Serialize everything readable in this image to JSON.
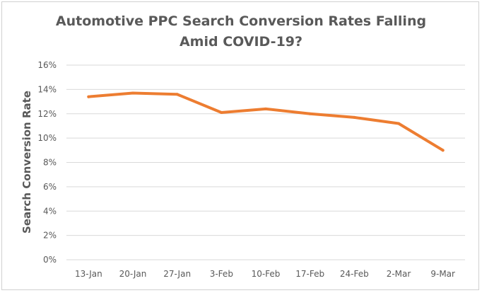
{
  "chart_data": {
    "type": "line",
    "title_lines": [
      "Automotive PPC Search Conversion Rates Falling",
      "Amid COVID-19?"
    ],
    "xlabel": "",
    "ylabel": "Search Conversion Rate",
    "categories": [
      "13-Jan",
      "20-Jan",
      "27-Jan",
      "3-Feb",
      "10-Feb",
      "17-Feb",
      "24-Feb",
      "2-Mar",
      "9-Mar"
    ],
    "series": [
      {
        "values": [
          13.4,
          13.7,
          13.6,
          12.1,
          12.4,
          12.0,
          11.7,
          11.2,
          9.0
        ],
        "color": "#ED7D31"
      }
    ],
    "ylim": [
      0,
      16
    ],
    "ytick_step": 2,
    "ytick_format": "percent",
    "grid": true,
    "legend": "none"
  }
}
